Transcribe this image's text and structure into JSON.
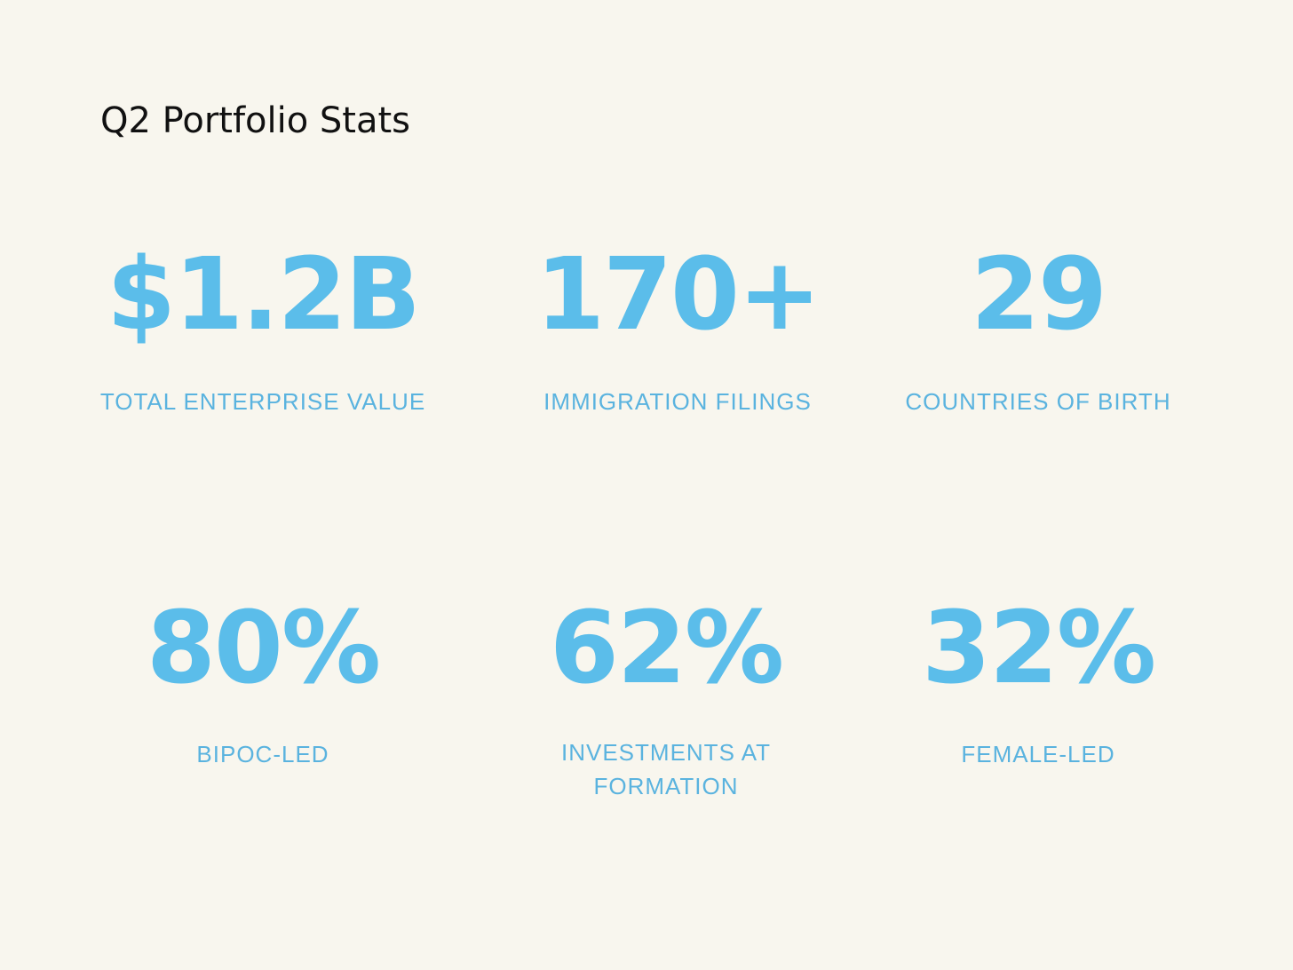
{
  "title": "Q2 Portfolio Stats",
  "accent_color": "#5bbdea",
  "background_color": "#f8f6ee",
  "stats": [
    {
      "value": "$1.2B",
      "label": "TOTAL ENTERPRISE VALUE"
    },
    {
      "value": "170+",
      "label": "IMMIGRATION FILINGS"
    },
    {
      "value": "29",
      "label": "COUNTRIES OF BIRTH"
    },
    {
      "value": "80%",
      "label": "BIPOC-LED"
    },
    {
      "value": "62%",
      "label_lines": [
        "INVESTMENTS AT",
        "FORMATION"
      ]
    },
    {
      "value": "32%",
      "label": "FEMALE-LED"
    }
  ]
}
